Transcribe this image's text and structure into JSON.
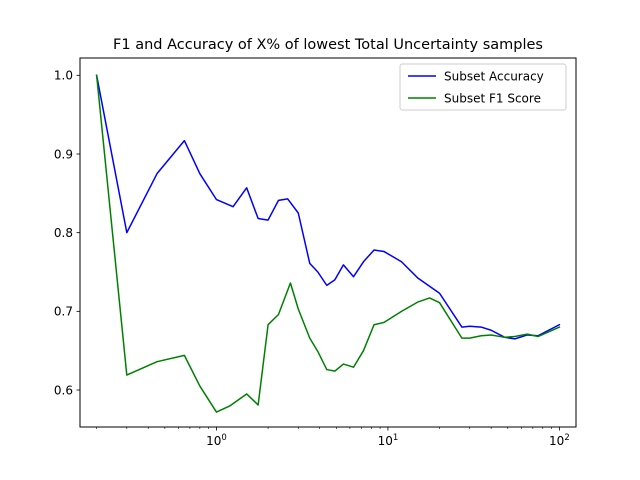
{
  "chart_data": {
    "type": "line",
    "title": "F1 and Accuracy of X% of lowest Total Uncertainty samples",
    "xlabel": "",
    "ylabel": "",
    "xscale": "log",
    "xlim": [
      0.16,
      125
    ],
    "ylim": [
      0.553,
      1.022
    ],
    "xticks": [
      {
        "value": 1,
        "base": "10",
        "exp": "0"
      },
      {
        "value": 10,
        "base": "10",
        "exp": "1"
      },
      {
        "value": 100,
        "base": "10",
        "exp": "2"
      }
    ],
    "yticks": [
      {
        "value": 0.6,
        "label": "0.6"
      },
      {
        "value": 0.7,
        "label": "0.7"
      },
      {
        "value": 0.8,
        "label": "0.8"
      },
      {
        "value": 0.9,
        "label": "0.9"
      },
      {
        "value": 1.0,
        "label": "1.0"
      }
    ],
    "grid": false,
    "legend_position": "top-right",
    "series": [
      {
        "name": "Subset Accuracy",
        "color": "#0000ff",
        "x": [
          0.2,
          0.3,
          0.45,
          0.65,
          0.8,
          1.0,
          1.25,
          1.5,
          1.75,
          2.0,
          2.3,
          2.6,
          3.0,
          3.5,
          3.9,
          4.4,
          4.9,
          5.5,
          6.3,
          7.2,
          8.3,
          9.5,
          12.0,
          15.0,
          20.0,
          27.0,
          30.0,
          35.0,
          40.0,
          48.0,
          55.0,
          65.0,
          75.0,
          100.0
        ],
        "y": [
          1.0,
          0.8,
          0.875,
          0.917,
          0.875,
          0.842,
          0.833,
          0.857,
          0.818,
          0.816,
          0.841,
          0.843,
          0.825,
          0.761,
          0.75,
          0.733,
          0.74,
          0.759,
          0.744,
          0.763,
          0.778,
          0.776,
          0.763,
          0.742,
          0.723,
          0.68,
          0.681,
          0.68,
          0.676,
          0.667,
          0.665,
          0.67,
          0.669,
          0.683
        ]
      },
      {
        "name": "Subset F1 Score",
        "color": "#008000",
        "x": [
          0.2,
          0.3,
          0.45,
          0.65,
          0.8,
          1.0,
          1.2,
          1.5,
          1.75,
          2.0,
          2.3,
          2.7,
          3.0,
          3.5,
          3.9,
          4.4,
          4.9,
          5.5,
          6.3,
          7.2,
          8.3,
          9.5,
          12.0,
          15.0,
          17.5,
          20.0,
          27.0,
          30.0,
          35.0,
          40.0,
          48.0,
          55.0,
          65.0,
          75.0,
          100.0
        ],
        "y": [
          1.0,
          0.619,
          0.636,
          0.644,
          0.605,
          0.572,
          0.58,
          0.595,
          0.581,
          0.683,
          0.696,
          0.736,
          0.703,
          0.666,
          0.649,
          0.626,
          0.624,
          0.633,
          0.629,
          0.65,
          0.683,
          0.686,
          0.7,
          0.712,
          0.717,
          0.711,
          0.666,
          0.666,
          0.669,
          0.67,
          0.667,
          0.668,
          0.671,
          0.668,
          0.68
        ]
      }
    ]
  }
}
